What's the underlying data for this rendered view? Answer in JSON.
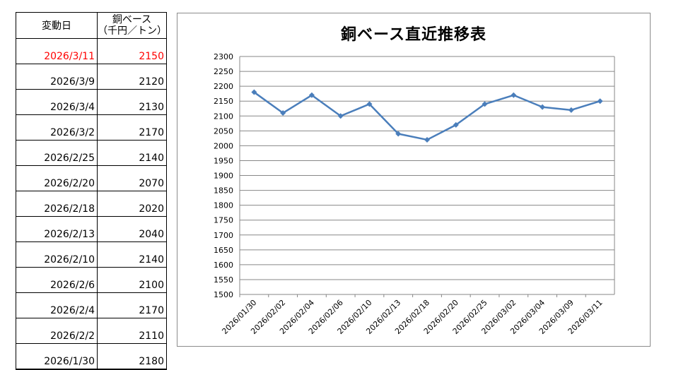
{
  "table": {
    "header_date": "変動日",
    "header_price_line1": "銅ベース",
    "header_price_line2": "（千円／トン）",
    "rows": [
      {
        "date": "2026/3/11",
        "price": "2150"
      },
      {
        "date": "2026/3/9",
        "price": "2120"
      },
      {
        "date": "2026/3/4",
        "price": "2130"
      },
      {
        "date": "2026/3/2",
        "price": "2170"
      },
      {
        "date": "2026/2/25",
        "price": "2140"
      },
      {
        "date": "2026/2/20",
        "price": "2070"
      },
      {
        "date": "2026/2/18",
        "price": "2020"
      },
      {
        "date": "2026/2/13",
        "price": "2040"
      },
      {
        "date": "2026/2/10",
        "price": "2140"
      },
      {
        "date": "2026/2/6",
        "price": "2100"
      },
      {
        "date": "2026/2/4",
        "price": "2170"
      },
      {
        "date": "2026/2/2",
        "price": "2110"
      },
      {
        "date": "2026/1/30",
        "price": "2180"
      }
    ],
    "highlight_color": "#ff0000"
  },
  "chart_data": {
    "type": "line",
    "title": "銅ベース直近推移表",
    "categories": [
      "2026/01/30",
      "2026/02/02",
      "2026/02/04",
      "2026/02/06",
      "2026/02/10",
      "2026/02/13",
      "2026/02/18",
      "2026/02/20",
      "2026/02/25",
      "2026/03/02",
      "2026/03/04",
      "2026/03/09",
      "2026/03/11"
    ],
    "series": [
      {
        "values": [
          2180,
          2110,
          2170,
          2100,
          2140,
          2040,
          2020,
          2070,
          2140,
          2170,
          2130,
          2120,
          2150
        ]
      }
    ],
    "yticks": [
      1500,
      1550,
      1600,
      1650,
      1700,
      1750,
      1800,
      1850,
      1900,
      1950,
      2000,
      2050,
      2100,
      2150,
      2200,
      2250,
      2300
    ],
    "ylim": [
      1500,
      2300
    ],
    "grid": true,
    "line_color": "#4a7ebb",
    "marker": "diamond"
  }
}
